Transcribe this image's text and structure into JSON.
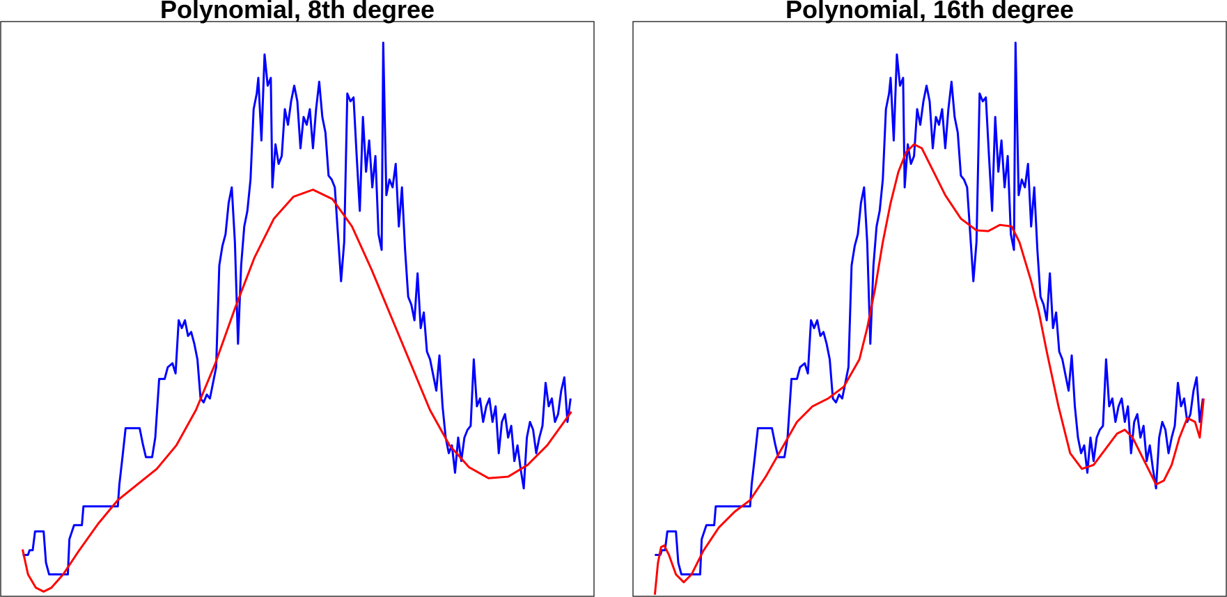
{
  "chart_data": [
    {
      "type": "line",
      "title": "Polynomial, 8th degree",
      "xlim": [
        0,
        760
      ],
      "ylim": [
        0,
        735
      ],
      "series": [
        {
          "color": "#0000ff",
          "x": [
            28,
            35,
            37,
            41,
            44,
            55,
            58,
            62,
            86,
            88,
            94,
            104,
            106,
            150,
            152,
            156,
            160,
            178,
            182,
            186,
            194,
            198,
            203,
            210,
            214,
            220,
            224,
            228,
            232,
            236,
            240,
            244,
            248,
            252,
            256,
            260,
            264,
            268,
            272,
            276,
            280,
            284,
            288,
            292,
            296,
            300,
            304,
            308,
            312,
            316,
            320,
            324,
            328,
            330,
            334,
            338,
            342,
            346,
            348,
            352,
            356,
            360,
            364,
            368,
            372,
            376,
            380,
            384,
            388,
            392,
            396,
            400,
            404,
            408,
            412,
            416,
            420,
            424,
            428,
            432,
            436,
            440,
            444,
            448,
            452,
            456,
            460,
            464,
            468,
            472,
            476,
            480,
            484,
            488,
            490,
            494,
            498,
            502,
            506,
            510,
            514,
            518,
            522,
            526,
            530,
            534,
            538,
            542,
            546,
            550,
            554,
            558,
            562,
            566,
            570,
            574,
            578,
            582,
            586,
            590,
            594,
            598,
            602,
            606,
            610,
            614,
            618,
            622,
            626,
            630,
            634,
            638,
            642,
            646,
            650,
            654,
            658,
            662,
            666,
            670,
            674,
            678,
            682,
            686,
            690,
            694,
            698,
            702,
            706,
            710,
            714,
            718,
            722,
            726,
            730
          ],
          "values": [
            53,
            53,
            59,
            59,
            83,
            83,
            43,
            28,
            28,
            73,
            91,
            91,
            115,
            115,
            143,
            178,
            215,
            215,
            195,
            178,
            178,
            203,
            278,
            278,
            293,
            298,
            285,
            353,
            343,
            353,
            333,
            338,
            323,
            303,
            253,
            248,
            258,
            253,
            273,
            293,
            423,
            448,
            463,
            503,
            523,
            453,
            323,
            423,
            473,
            493,
            533,
            623,
            643,
            663,
            583,
            693,
            653,
            663,
            523,
            578,
            553,
            563,
            623,
            603,
            633,
            653,
            633,
            573,
            613,
            603,
            623,
            573,
            623,
            658,
            613,
            593,
            538,
            533,
            523,
            463,
            403,
            453,
            643,
            633,
            638,
            563,
            493,
            613,
            543,
            583,
            523,
            563,
            463,
            443,
            708,
            513,
            533,
            523,
            553,
            473,
            523,
            443,
            383,
            373,
            353,
            413,
            343,
            363,
            313,
            303,
            283,
            263,
            308,
            243,
            203,
            183,
            193,
            158,
            203,
            173,
            203,
            213,
            218,
            303,
            243,
            253,
            223,
            243,
            253,
            223,
            243,
            183,
            223,
            233,
            203,
            218,
            173,
            193,
            163,
            138,
            203,
            223,
            213,
            183,
            203,
            218,
            273,
            243,
            253,
            223,
            233,
            263,
            280,
            223,
            253
          ]
        },
        {
          "color": "#ff0000",
          "x": [
            28,
            35,
            45,
            55,
            65,
            80,
            100,
            125,
            150,
            175,
            200,
            225,
            250,
            275,
            300,
            325,
            350,
            375,
            400,
            425,
            450,
            475,
            500,
            525,
            550,
            575,
            600,
            625,
            650,
            675,
            700,
            731
          ],
          "values": [
            60,
            28,
            11,
            6,
            11,
            28,
            58,
            93,
            123,
            143,
            163,
            193,
            238,
            298,
            368,
            433,
            483,
            511,
            520,
            508,
            473,
            418,
            358,
            298,
            238,
            193,
            165,
            151,
            153,
            168,
            193,
            236
          ]
        }
      ]
    },
    {
      "type": "line",
      "title": "Polynomial, 16th degree",
      "xlim": [
        0,
        760
      ],
      "ylim": [
        0,
        735
      ],
      "series": [
        {
          "color": "#0000ff",
          "x": [
            28,
            35,
            37,
            41,
            44,
            55,
            58,
            62,
            86,
            88,
            94,
            104,
            106,
            150,
            152,
            156,
            160,
            178,
            182,
            186,
            194,
            198,
            203,
            210,
            214,
            220,
            224,
            228,
            232,
            236,
            240,
            244,
            248,
            252,
            256,
            260,
            264,
            268,
            272,
            276,
            280,
            284,
            288,
            292,
            296,
            300,
            304,
            308,
            312,
            316,
            320,
            324,
            328,
            330,
            334,
            338,
            342,
            346,
            348,
            352,
            356,
            360,
            364,
            368,
            372,
            376,
            380,
            384,
            388,
            392,
            396,
            400,
            404,
            408,
            412,
            416,
            420,
            424,
            428,
            432,
            436,
            440,
            444,
            448,
            452,
            456,
            460,
            464,
            468,
            472,
            476,
            480,
            484,
            488,
            490,
            494,
            498,
            502,
            506,
            510,
            514,
            518,
            522,
            526,
            530,
            534,
            538,
            542,
            546,
            550,
            554,
            558,
            562,
            566,
            570,
            574,
            578,
            582,
            586,
            590,
            594,
            598,
            602,
            606,
            610,
            614,
            618,
            622,
            626,
            630,
            634,
            638,
            642,
            646,
            650,
            654,
            658,
            662,
            666,
            670,
            674,
            678,
            682,
            686,
            690,
            694,
            698,
            702,
            706,
            710,
            714,
            718,
            722,
            726,
            730
          ],
          "values": [
            53,
            53,
            59,
            59,
            83,
            83,
            43,
            28,
            28,
            73,
            91,
            91,
            115,
            115,
            143,
            178,
            215,
            215,
            195,
            178,
            178,
            203,
            278,
            278,
            293,
            298,
            285,
            353,
            343,
            353,
            333,
            338,
            323,
            303,
            253,
            248,
            258,
            253,
            273,
            293,
            423,
            448,
            463,
            503,
            523,
            453,
            323,
            423,
            473,
            493,
            533,
            623,
            643,
            663,
            583,
            693,
            653,
            663,
            523,
            578,
            553,
            563,
            623,
            603,
            633,
            653,
            633,
            573,
            613,
            603,
            623,
            573,
            623,
            658,
            613,
            593,
            538,
            533,
            523,
            463,
            403,
            453,
            643,
            633,
            638,
            563,
            493,
            613,
            543,
            583,
            523,
            563,
            463,
            443,
            708,
            513,
            533,
            523,
            553,
            473,
            523,
            443,
            383,
            373,
            353,
            413,
            343,
            363,
            313,
            303,
            283,
            263,
            308,
            243,
            203,
            183,
            193,
            158,
            203,
            173,
            203,
            213,
            218,
            303,
            243,
            253,
            223,
            243,
            253,
            223,
            243,
            183,
            223,
            233,
            203,
            218,
            173,
            193,
            163,
            138,
            203,
            223,
            213,
            183,
            203,
            218,
            273,
            243,
            253,
            223,
            233,
            263,
            280,
            223,
            253
          ]
        },
        {
          "color": "#ff0000",
          "x": [
            28,
            32,
            36,
            40,
            46,
            55,
            65,
            75,
            90,
            110,
            130,
            150,
            170,
            190,
            210,
            230,
            250,
            270,
            290,
            300,
            310,
            320,
            330,
            340,
            350,
            360,
            370,
            380,
            400,
            420,
            440,
            455,
            470,
            485,
            495,
            510,
            520,
            530,
            545,
            560,
            575,
            590,
            605,
            620,
            630,
            640,
            655,
            670,
            680,
            690,
            700,
            710,
            720,
            726,
            731
          ],
          "values": [
            2,
            43,
            63,
            65,
            53,
            28,
            18,
            28,
            58,
            88,
            108,
            123,
            153,
            188,
            223,
            243,
            253,
            268,
            303,
            343,
            393,
            453,
            503,
            543,
            568,
            578,
            573,
            553,
            513,
            483,
            468,
            467,
            475,
            473,
            453,
            403,
            363,
            313,
            243,
            183,
            163,
            168,
            188,
            208,
            213,
            203,
            173,
            143,
            148,
            168,
            203,
            228,
            223,
            203,
            253
          ]
        }
      ]
    }
  ]
}
